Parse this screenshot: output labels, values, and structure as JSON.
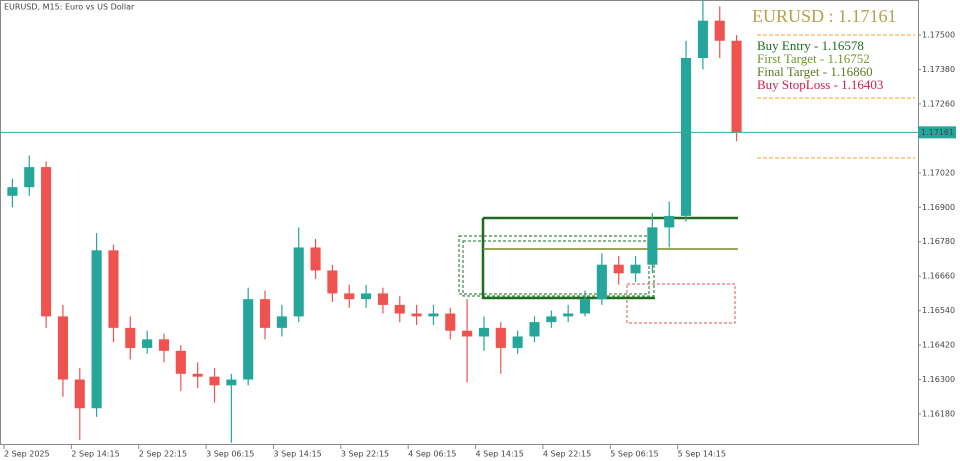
{
  "chart_data": {
    "type": "candlestick",
    "title": "EURUSD, M15:  Euro vs US Dollar",
    "up_color": "#26a69a",
    "down_color": "#ef5350",
    "open": [
      1.1694,
      1.1697,
      1.1704,
      1.1652,
      1.163,
      1.162,
      1.1675,
      1.1648,
      1.1641,
      1.1644,
      1.164,
      1.1632,
      1.1631,
      1.1628,
      1.163,
      1.1658,
      1.1648,
      1.1652,
      1.1676,
      1.1668,
      1.166,
      1.1658,
      1.166,
      1.1656,
      1.1653,
      1.1652,
      1.1653,
      1.1647,
      1.1645,
      1.1648,
      1.1641,
      1.1645,
      1.165,
      1.1652,
      1.1653,
      1.1658,
      1.167,
      1.1667,
      1.167,
      1.1683,
      1.1687,
      1.1742,
      1.1755,
      1.1748
    ],
    "high": [
      1.17,
      1.1708,
      1.1706,
      1.1656,
      1.1634,
      1.1681,
      1.1677,
      1.1652,
      1.1647,
      1.1646,
      1.1642,
      1.1636,
      1.1634,
      1.1632,
      1.1662,
      1.1661,
      1.1656,
      1.1683,
      1.1679,
      1.167,
      1.1663,
      1.1663,
      1.1662,
      1.1659,
      1.1656,
      1.1656,
      1.1655,
      1.1658,
      1.1652,
      1.165,
      1.1647,
      1.1652,
      1.1654,
      1.1656,
      1.1661,
      1.1674,
      1.1673,
      1.1673,
      1.1688,
      1.1692,
      1.1748,
      1.1762,
      1.176,
      1.175
    ],
    "low": [
      1.169,
      1.1694,
      1.1648,
      1.1624,
      1.1609,
      1.1617,
      1.1643,
      1.1637,
      1.1639,
      1.1636,
      1.1626,
      1.1627,
      1.1622,
      1.1608,
      1.1628,
      1.1644,
      1.1645,
      1.165,
      1.1665,
      1.1657,
      1.1655,
      1.1655,
      1.1653,
      1.165,
      1.1649,
      1.1649,
      1.1644,
      1.1629,
      1.164,
      1.1632,
      1.1639,
      1.1643,
      1.1648,
      1.165,
      1.1652,
      1.1656,
      1.1663,
      1.1664,
      1.1667,
      1.1676,
      1.1685,
      1.1738,
      1.1742,
      1.1713
    ],
    "close": [
      1.1697,
      1.1704,
      1.1652,
      1.163,
      1.162,
      1.1675,
      1.1648,
      1.1641,
      1.1644,
      1.164,
      1.1632,
      1.1631,
      1.1628,
      1.163,
      1.1658,
      1.1648,
      1.1652,
      1.1676,
      1.1668,
      1.166,
      1.1658,
      1.166,
      1.1656,
      1.1653,
      1.1652,
      1.1653,
      1.1647,
      1.1645,
      1.1648,
      1.1641,
      1.1645,
      1.165,
      1.1652,
      1.1653,
      1.1658,
      1.167,
      1.1667,
      1.167,
      1.1683,
      1.1687,
      1.1742,
      1.1755,
      1.1748,
      1.1716
    ],
    "xlim": [
      0,
      44
    ],
    "xticks": [
      {
        "value": 0,
        "label": "2 Sep 2025"
      },
      {
        "value": 4,
        "label": "2 Sep 14:15"
      },
      {
        "value": 8,
        "label": "2 Sep 22:15"
      },
      {
        "value": 12,
        "label": "3 Sep 06:15"
      },
      {
        "value": 16,
        "label": "3 Sep 14:15"
      },
      {
        "value": 20,
        "label": "3 Sep 22:15"
      },
      {
        "value": 24,
        "label": "4 Sep 06:15"
      },
      {
        "value": 28,
        "label": "4 Sep 14:15"
      },
      {
        "value": 32,
        "label": "4 Sep 22:15"
      },
      {
        "value": 36,
        "label": "5 Sep 06:15"
      },
      {
        "value": 40,
        "label": "5 Sep 14:15"
      }
    ],
    "ylim": [
      1.16072,
      1.17622
    ],
    "yticks": [
      {
        "value": 1.175,
        "label": "1.17500"
      },
      {
        "value": 1.1738,
        "label": "1.17380"
      },
      {
        "value": 1.1726,
        "label": "1.17260"
      },
      {
        "value": 1.1702,
        "label": "1.17020"
      },
      {
        "value": 1.169,
        "label": "1.16900"
      },
      {
        "value": 1.1678,
        "label": "1.16780"
      },
      {
        "value": 1.1666,
        "label": "1.16660"
      },
      {
        "value": 1.1654,
        "label": "1.16540"
      },
      {
        "value": 1.1642,
        "label": "1.16420"
      },
      {
        "value": 1.163,
        "label": "1.16300"
      },
      {
        "value": 1.1618,
        "label": "1.16180"
      }
    ],
    "current_price": {
      "value": 1.17161,
      "label": "1.17161"
    },
    "panel": {
      "symbol": "EURUSD : 1.17161",
      "entry": "Buy Entry - 1.16578",
      "first_target": "First Target - 1.16752",
      "final_target": "Final Target - 1.16860",
      "stoploss": "Buy StopLoss - 1.16403"
    }
  }
}
